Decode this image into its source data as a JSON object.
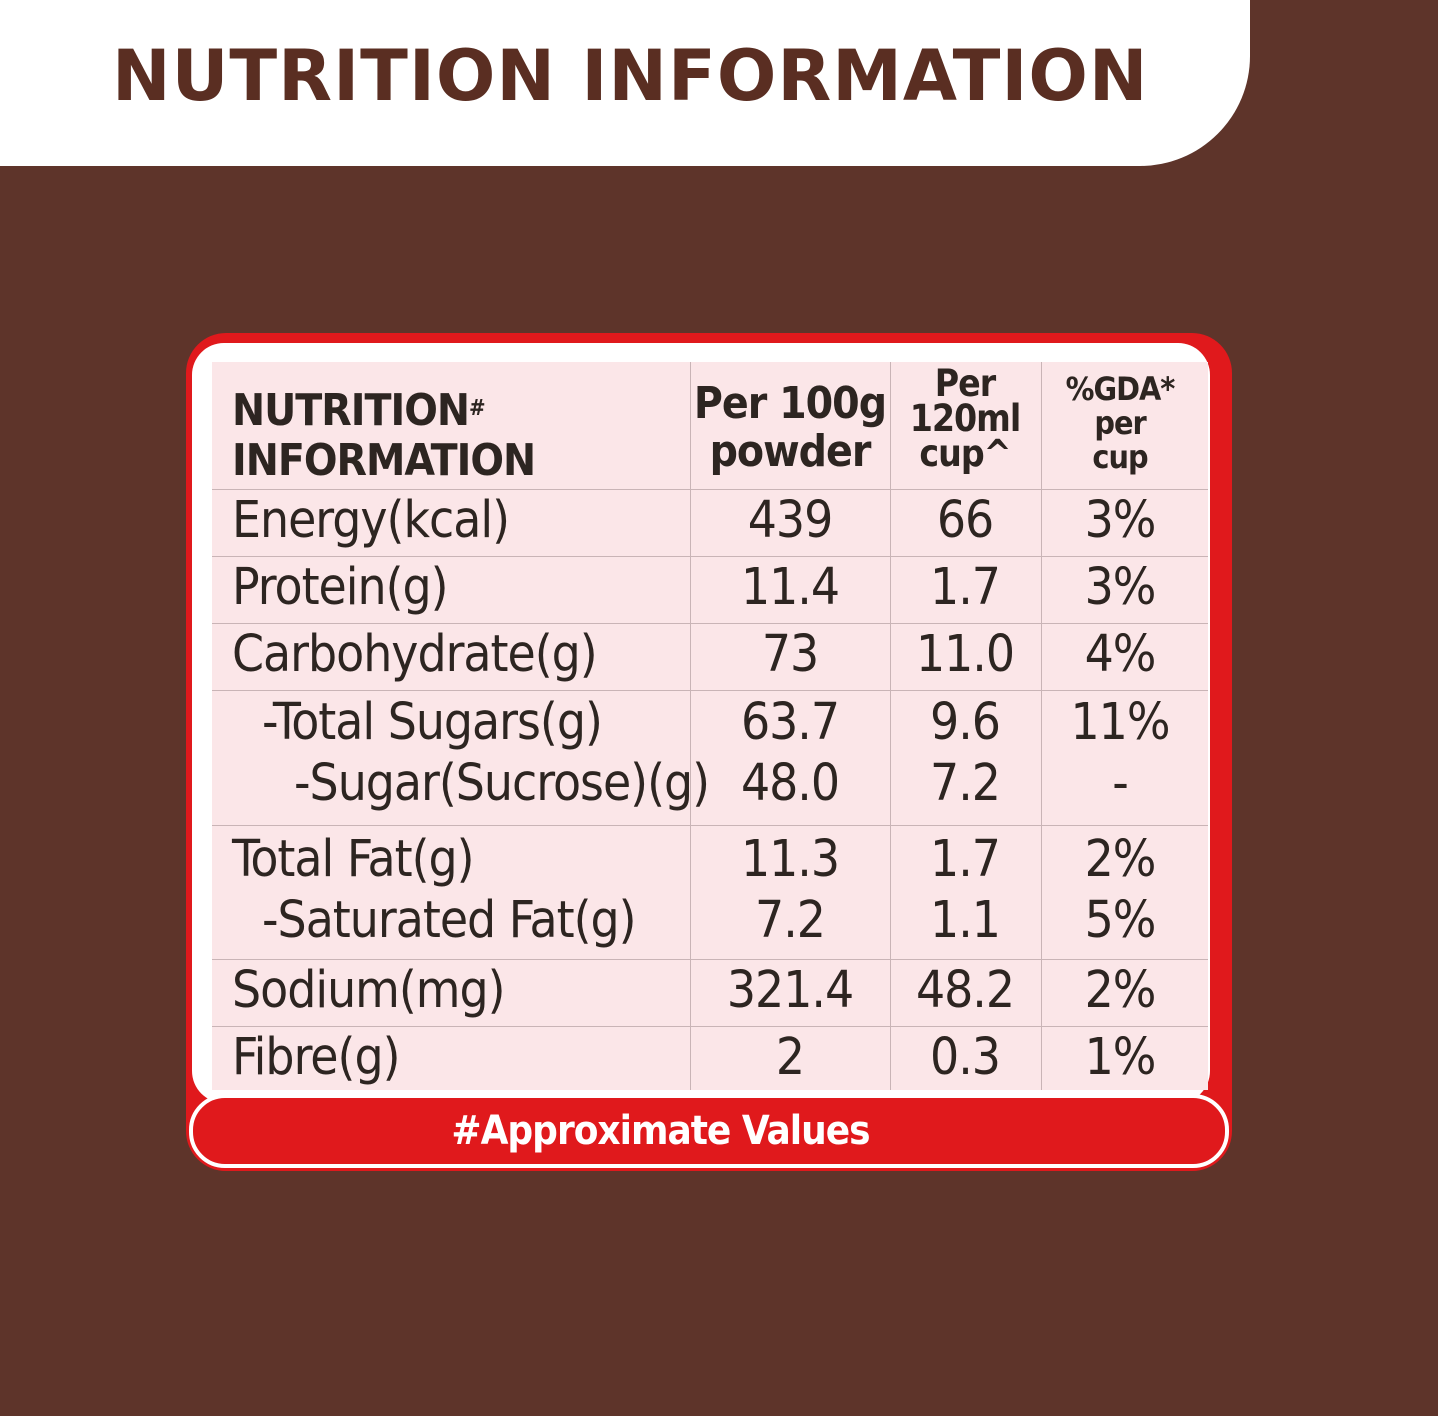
{
  "banner": {
    "title": "NUTRITION INFORMATION"
  },
  "table": {
    "headers": {
      "nutrition_line1": "NUTRITION",
      "nutrition_mark": "#",
      "nutrition_line2": "INFORMATION",
      "per100_line1": "Per 100g",
      "per100_line2": "powder",
      "per120_line1": "Per",
      "per120_line2": "120ml",
      "per120_line3": "cup^",
      "gda_line1": "%GDA*",
      "gda_line2": "per",
      "gda_line3": "cup"
    },
    "rows": [
      {
        "name": "Energy(kcal)",
        "per100g": "439",
        "per120ml": "66",
        "gda": "3%"
      },
      {
        "name": "Protein(g)",
        "per100g": "11.4",
        "per120ml": "1.7",
        "gda": "3%"
      },
      {
        "name": "Carbohydrate(g)",
        "per100g": "73",
        "per120ml": "11.0",
        "gda": "4%"
      },
      {
        "name": "-Total Sugars(g)",
        "per100g": "63.7",
        "per120ml": "9.6",
        "gda": "11%"
      },
      {
        "name": "-Sugar(Sucrose)(g)",
        "per100g": "48.0",
        "per120ml": "7.2",
        "gda": "-"
      },
      {
        "name": "Total Fat(g)",
        "per100g": "11.3",
        "per120ml": "1.7",
        "gda": "2%"
      },
      {
        "name": "-Saturated Fat(g)",
        "per100g": "7.2",
        "per120ml": "1.1",
        "gda": "5%"
      },
      {
        "name": "Sodium(mg)",
        "per100g": "321.4",
        "per120ml": "48.2",
        "gda": "2%"
      },
      {
        "name": "Fibre(g)",
        "per100g": "2",
        "per120ml": "0.3",
        "gda": "1%"
      }
    ]
  },
  "footer": {
    "note": "#Approximate Values"
  },
  "colors": {
    "background_brown": "#5e342a",
    "title_brown": "#5a2e22",
    "frame_red": "#e0191c",
    "table_pink": "#fbe6e8",
    "text_dark": "#2d2521"
  }
}
